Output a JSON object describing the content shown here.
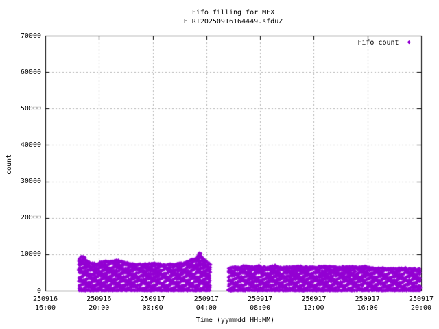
{
  "colors": {
    "series": "#9400d3",
    "grid": "#b0b0b0",
    "axis": "#000000",
    "background": "#ffffff",
    "text": "#000000"
  },
  "chart_data": {
    "type": "scatter",
    "title": "Fifo filling for MEX",
    "subtitle": "E_RT20250916164449.sfduZ",
    "xlabel": "Time (yymmdd HH:MM)",
    "ylabel": "count",
    "ylim": [
      0,
      70000
    ],
    "yticks": [
      0,
      10000,
      20000,
      30000,
      40000,
      50000,
      60000,
      70000
    ],
    "xlim_hours": [
      0,
      28
    ],
    "xticks": [
      {
        "hour": 0,
        "date": "250916",
        "time": "16:00"
      },
      {
        "hour": 4,
        "date": "250916",
        "time": "20:00"
      },
      {
        "hour": 8,
        "date": "250917",
        "time": "00:00"
      },
      {
        "hour": 12,
        "date": "250917",
        "time": "04:00"
      },
      {
        "hour": 16,
        "date": "250917",
        "time": "08:00"
      },
      {
        "hour": 20,
        "date": "250917",
        "time": "12:00"
      },
      {
        "hour": 24,
        "date": "250917",
        "time": "16:00"
      },
      {
        "hour": 28,
        "date": "250917",
        "time": "20:00"
      }
    ],
    "grid": true,
    "legend": {
      "label": "Fifo count",
      "marker": "diamond",
      "position": "top-right-inside"
    },
    "series": [
      {
        "name": "Fifo count",
        "color": "#9400d3",
        "marker": "diamond",
        "value_floor": 0,
        "clusters": [
          {
            "start_hour": 2.5,
            "end_hour": 12.3,
            "envelope": [
              [
                2.5,
                8800
              ],
              [
                2.8,
                9600
              ],
              [
                3.1,
                8300
              ],
              [
                3.4,
                7600
              ],
              [
                3.9,
                7400
              ],
              [
                4.4,
                8200
              ],
              [
                4.9,
                8000
              ],
              [
                5.4,
                8400
              ],
              [
                5.9,
                7800
              ],
              [
                6.5,
                7300
              ],
              [
                7.2,
                7300
              ],
              [
                8.0,
                7500
              ],
              [
                8.8,
                7200
              ],
              [
                9.6,
                7300
              ],
              [
                10.4,
                7600
              ],
              [
                10.9,
                8600
              ],
              [
                11.2,
                8800
              ],
              [
                11.35,
                9400
              ],
              [
                11.5,
                10900
              ],
              [
                11.65,
                9200
              ],
              [
                11.9,
                8400
              ],
              [
                12.15,
                7600
              ],
              [
                12.3,
                7200
              ]
            ]
          },
          {
            "start_hour": 13.65,
            "end_hour": 27.95,
            "envelope": [
              [
                13.65,
                6100
              ],
              [
                14.0,
                6600
              ],
              [
                14.5,
                6400
              ],
              [
                14.8,
                6900
              ],
              [
                15.3,
                6500
              ],
              [
                16.0,
                6800
              ],
              [
                16.5,
                6400
              ],
              [
                17.1,
                7000
              ],
              [
                17.6,
                6400
              ],
              [
                18.3,
                6600
              ],
              [
                19.0,
                6700
              ],
              [
                19.7,
                6500
              ],
              [
                20.4,
                6600
              ],
              [
                21.1,
                6700
              ],
              [
                21.8,
                6500
              ],
              [
                22.5,
                6700
              ],
              [
                23.2,
                6500
              ],
              [
                23.9,
                6700
              ],
              [
                24.5,
                6300
              ],
              [
                25.2,
                6200
              ],
              [
                25.9,
                6000
              ],
              [
                26.6,
                6200
              ],
              [
                27.3,
                6100
              ],
              [
                27.95,
                5900
              ]
            ]
          }
        ]
      }
    ]
  }
}
